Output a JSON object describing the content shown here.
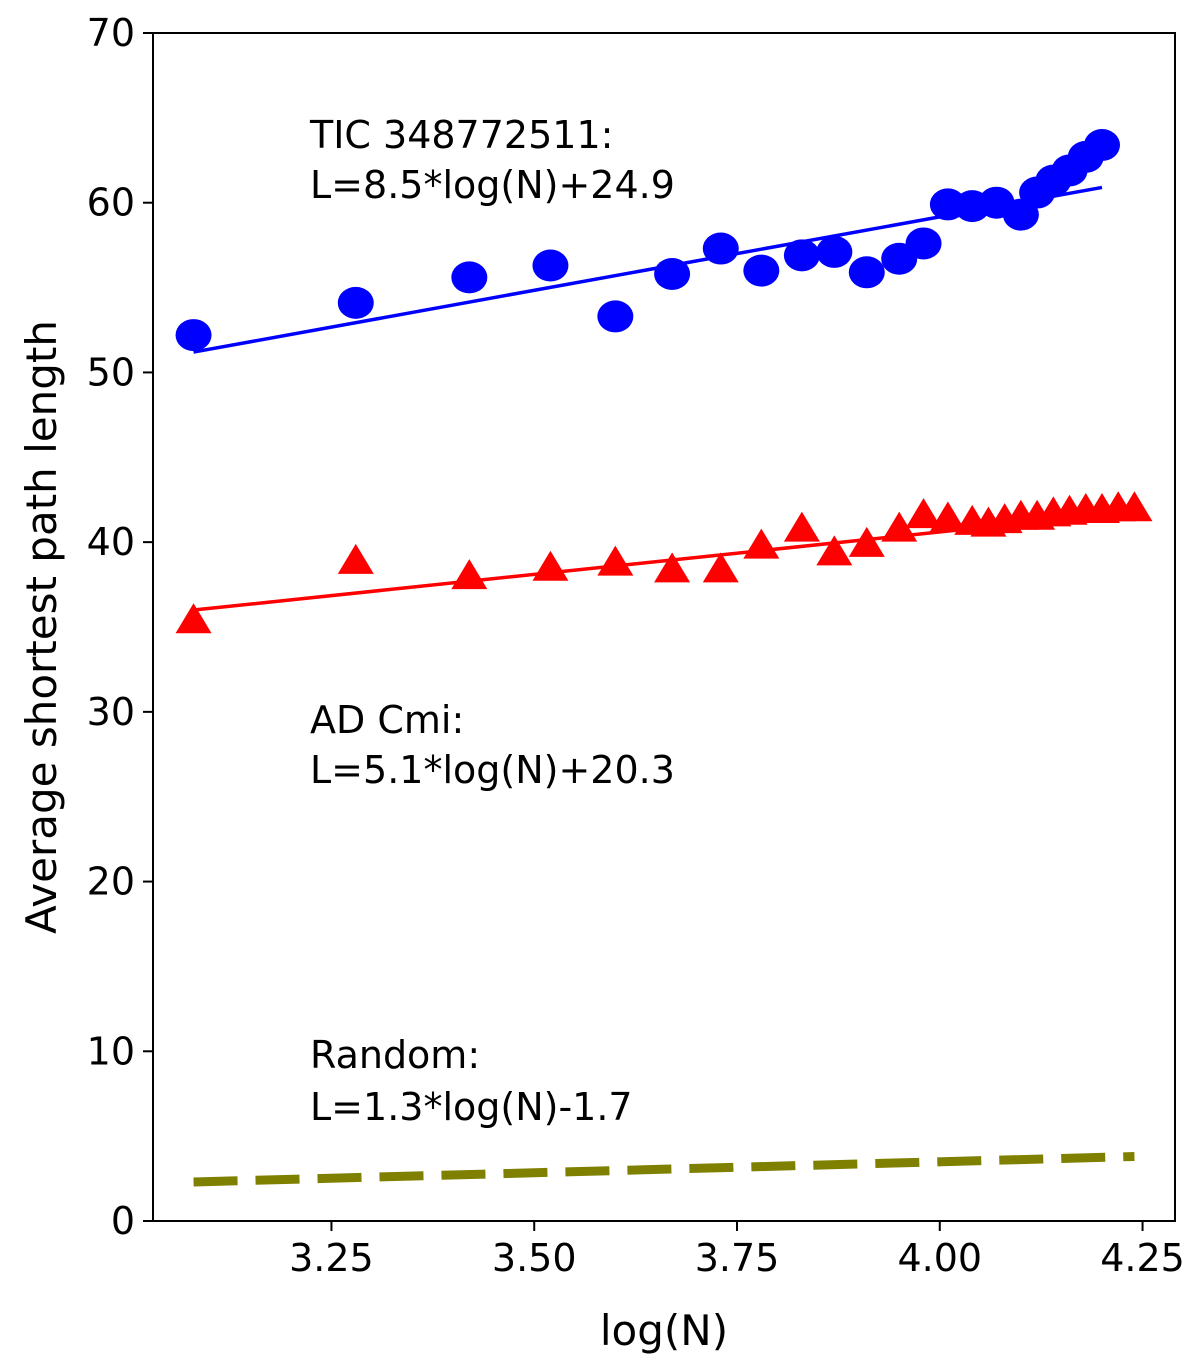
{
  "chart_data": {
    "type": "scatter",
    "xlabel": "log(N)",
    "ylabel": "Average shortest path length",
    "xlim": [
      3.03,
      4.29
    ],
    "ylim": [
      0,
      70
    ],
    "xticks": [
      3.25,
      3.5,
      3.75,
      4.0,
      4.25
    ],
    "xtick_labels": [
      "3.25",
      "3.50",
      "3.75",
      "4.00",
      "4.25"
    ],
    "yticks": [
      0,
      10,
      20,
      30,
      40,
      50,
      60,
      70
    ],
    "ytick_labels": [
      "0",
      "10",
      "20",
      "30",
      "40",
      "50",
      "60",
      "70"
    ],
    "grid": false,
    "series": [
      {
        "name": "TIC 348772511",
        "color": "#0000ff",
        "marker": "circle",
        "x": [
          3.08,
          3.28,
          3.42,
          3.52,
          3.6,
          3.67,
          3.73,
          3.78,
          3.83,
          3.87,
          3.91,
          3.95,
          3.98,
          4.01,
          4.04,
          4.07,
          4.1,
          4.12,
          4.14,
          4.16,
          4.18,
          4.2
        ],
        "y": [
          52.2,
          54.1,
          55.6,
          56.3,
          53.3,
          55.8,
          57.3,
          56.0,
          56.9,
          57.1,
          55.9,
          56.7,
          57.6,
          59.9,
          59.8,
          60.0,
          59.3,
          60.6,
          61.3,
          61.9,
          62.7,
          63.4
        ],
        "fit": {
          "x": [
            3.08,
            4.2
          ],
          "y": [
            51.2,
            60.9
          ]
        },
        "annotation": [
          "TIC 348772511:",
          "L=8.5*log(N)+24.9"
        ]
      },
      {
        "name": "AD Cmi",
        "color": "#ff0000",
        "marker": "triangle",
        "x": [
          3.08,
          3.28,
          3.42,
          3.52,
          3.6,
          3.67,
          3.73,
          3.78,
          3.83,
          3.87,
          3.91,
          3.95,
          3.98,
          4.01,
          4.04,
          4.06,
          4.08,
          4.1,
          4.12,
          4.14,
          4.16,
          4.18,
          4.2,
          4.22,
          4.24
        ],
        "y": [
          35.3,
          38.8,
          37.9,
          38.4,
          38.7,
          38.3,
          38.3,
          39.7,
          40.7,
          39.3,
          39.8,
          40.7,
          41.5,
          41.3,
          41.1,
          41.0,
          41.2,
          41.4,
          41.4,
          41.6,
          41.7,
          41.8,
          41.8,
          41.9,
          41.9
        ],
        "fit": {
          "x": [
            3.08,
            4.2
          ],
          "y": [
            36.0,
            41.6
          ]
        },
        "annotation": [
          "AD Cmi:",
          "L=5.1*log(N)+20.3"
        ]
      },
      {
        "name": "Random",
        "color": "#808000",
        "marker": "dashed-line",
        "fit": {
          "x": [
            3.08,
            4.24
          ],
          "y": [
            2.3,
            3.8
          ]
        },
        "annotation": [
          "Random:",
          "L=1.3*log(N)-1.7"
        ]
      }
    ]
  }
}
